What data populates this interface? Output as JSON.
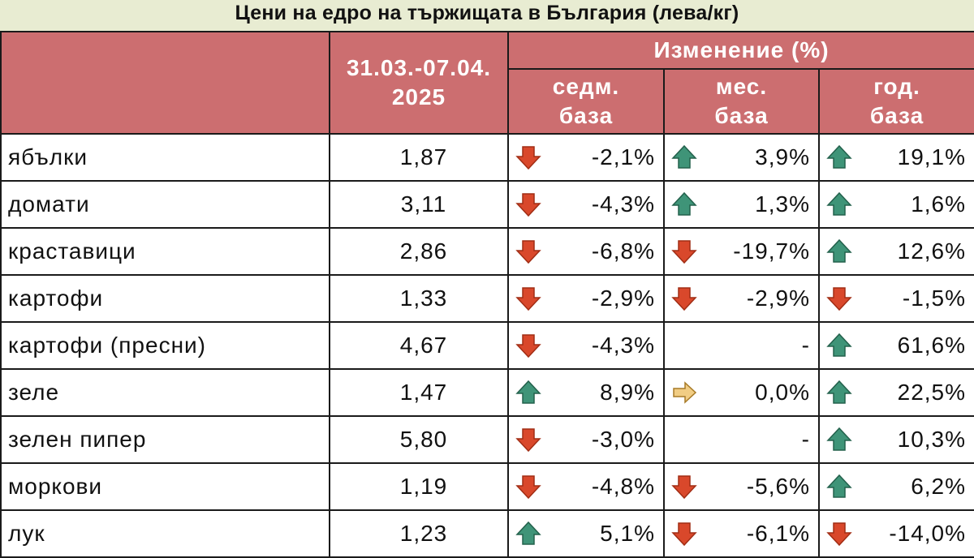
{
  "title": "Цени на едро на тържищата в България (лева/кг)",
  "header": {
    "period": [
      "31.03.-07.04.",
      "2025"
    ],
    "change_group": "Изменение (%)",
    "weekly": [
      "седм.",
      "база"
    ],
    "monthly": [
      "мес.",
      "база"
    ],
    "yearly": [
      "год.",
      "база"
    ]
  },
  "colors": {
    "header_bg": "#cc6e70",
    "up": "#3f9478",
    "down": "#d9482b",
    "flat": "#e0b25a",
    "page_bg": "#e8ecd2"
  },
  "chart_data": {
    "type": "table",
    "title": "Цени на едро на тържищата в България (лева/кг)",
    "columns": [
      "31.03.-07.04. 2025",
      "седм. база",
      "мес. база",
      "год. база"
    ],
    "rows": [
      {
        "name": "ябълки",
        "price": "1,87",
        "weekly": {
          "value": "-2,1%",
          "dir": "down"
        },
        "monthly": {
          "value": "3,9%",
          "dir": "up"
        },
        "yearly": {
          "value": "19,1%",
          "dir": "up"
        }
      },
      {
        "name": "домати",
        "price": "3,11",
        "weekly": {
          "value": "-4,3%",
          "dir": "down"
        },
        "monthly": {
          "value": "1,3%",
          "dir": "up"
        },
        "yearly": {
          "value": "1,6%",
          "dir": "up"
        }
      },
      {
        "name": "краставици",
        "price": "2,86",
        "weekly": {
          "value": "-6,8%",
          "dir": "down"
        },
        "monthly": {
          "value": "-19,7%",
          "dir": "down"
        },
        "yearly": {
          "value": "12,6%",
          "dir": "up"
        }
      },
      {
        "name": "картофи",
        "price": "1,33",
        "weekly": {
          "value": "-2,9%",
          "dir": "down"
        },
        "monthly": {
          "value": "-2,9%",
          "dir": "down"
        },
        "yearly": {
          "value": "-1,5%",
          "dir": "down"
        }
      },
      {
        "name": "картофи (пресни)",
        "price": "4,67",
        "weekly": {
          "value": "-4,3%",
          "dir": "down"
        },
        "monthly": {
          "value": "-",
          "dir": "none"
        },
        "yearly": {
          "value": "61,6%",
          "dir": "up"
        }
      },
      {
        "name": "зеле",
        "price": "1,47",
        "weekly": {
          "value": "8,9%",
          "dir": "up"
        },
        "monthly": {
          "value": "0,0%",
          "dir": "flat"
        },
        "yearly": {
          "value": "22,5%",
          "dir": "up"
        }
      },
      {
        "name": "зелен пипер",
        "price": "5,80",
        "weekly": {
          "value": "-3,0%",
          "dir": "down"
        },
        "monthly": {
          "value": "-",
          "dir": "none"
        },
        "yearly": {
          "value": "10,3%",
          "dir": "up"
        }
      },
      {
        "name": "моркови",
        "price": "1,19",
        "weekly": {
          "value": "-4,8%",
          "dir": "down"
        },
        "monthly": {
          "value": "-5,6%",
          "dir": "down"
        },
        "yearly": {
          "value": "6,2%",
          "dir": "up"
        }
      },
      {
        "name": "лук",
        "price": "1,23",
        "weekly": {
          "value": "5,1%",
          "dir": "up"
        },
        "monthly": {
          "value": "-6,1%",
          "dir": "down"
        },
        "yearly": {
          "value": "-14,0%",
          "dir": "down"
        }
      }
    ]
  }
}
